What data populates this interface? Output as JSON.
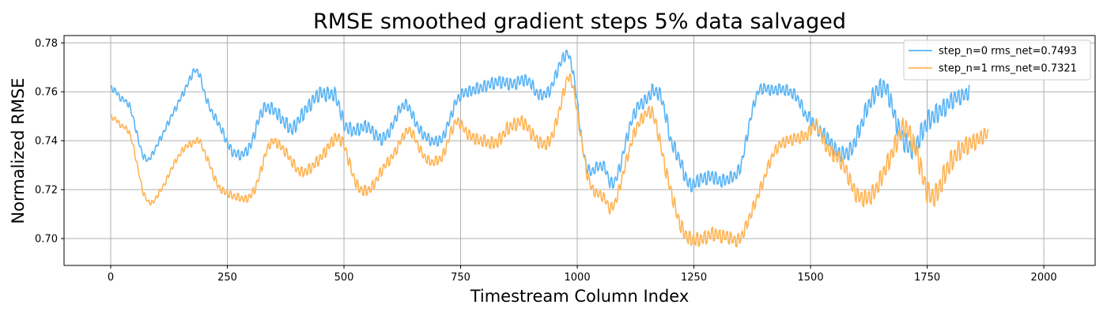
{
  "chart_data": {
    "type": "line",
    "title": "RMSE smoothed gradient steps 5% data salvaged",
    "xlabel": "Timestream Column Index",
    "ylabel": "Normalized RMSE",
    "xlim": [
      -100,
      2110
    ],
    "ylim": [
      0.689,
      0.783
    ],
    "xticks": [
      0,
      250,
      500,
      750,
      1000,
      1250,
      1500,
      1750,
      2000
    ],
    "yticks": [
      0.7,
      0.72,
      0.74,
      0.76,
      0.78
    ],
    "xtick_labels": [
      "0",
      "250",
      "500",
      "750",
      "1000",
      "1250",
      "1500",
      "1750",
      "2000"
    ],
    "ytick_labels": [
      "0.70",
      "0.72",
      "0.74",
      "0.76",
      "0.78"
    ],
    "grid": true,
    "legend_position": "top-right",
    "series": [
      {
        "name": "step_n=0 rms_net=0.7493",
        "color": "#5ab4f5",
        "x_start": 0,
        "x_step": 10,
        "noise": [
          0.0012,
          0.0012,
          0.0015,
          0.002,
          0.0028,
          0.003,
          0.0026,
          0.0022,
          0.0022,
          0.0026,
          0.0024,
          0.002,
          0.0025,
          0.003,
          0.0028,
          0.0022,
          0.0024,
          0.0032,
          0.004,
          0.0045,
          0.003
        ],
        "values": [
          0.7615,
          0.7605,
          0.7575,
          0.7565,
          0.7545,
          0.748,
          0.7395,
          0.7335,
          0.732,
          0.7345,
          0.7385,
          0.742,
          0.746,
          0.75,
          0.7535,
          0.7575,
          0.761,
          0.7655,
          0.769,
          0.7675,
          0.76,
          0.7545,
          0.7505,
          0.7475,
          0.7435,
          0.739,
          0.7355,
          0.7345,
          0.734,
          0.7355,
          0.738,
          0.744,
          0.7505,
          0.7535,
          0.7535,
          0.7525,
          0.7505,
          0.748,
          0.746,
          0.7445,
          0.7475,
          0.7505,
          0.753,
          0.7555,
          0.758,
          0.7595,
          0.759,
          0.759,
          0.759,
          0.754,
          0.7465,
          0.745,
          0.744,
          0.7445,
          0.7455,
          0.746,
          0.744,
          0.742,
          0.7405,
          0.742,
          0.7445,
          0.749,
          0.753,
          0.755,
          0.7535,
          0.749,
          0.745,
          0.7425,
          0.741,
          0.7395,
          0.74,
          0.7405,
          0.745,
          0.7505,
          0.756,
          0.7585,
          0.76,
          0.76,
          0.761,
          0.7615,
          0.762,
          0.763,
          0.7635,
          0.764,
          0.764,
          0.7635,
          0.763,
          0.7635,
          0.765,
          0.7645,
          0.764,
          0.76,
          0.7585,
          0.759,
          0.76,
          0.7645,
          0.77,
          0.774,
          0.776,
          0.7695,
          0.756,
          0.739,
          0.729,
          0.727,
          0.729,
          0.73,
          0.729,
          0.7225,
          0.723,
          0.728,
          0.736,
          0.744,
          0.75,
          0.754,
          0.7555,
          0.757,
          0.7605,
          0.76,
          0.758,
          0.75,
          0.74,
          0.736,
          0.732,
          0.726,
          0.722,
          0.722,
          0.724,
          0.7245,
          0.725,
          0.7255,
          0.724,
          0.7235,
          0.724,
          0.725,
          0.726,
          0.729,
          0.738,
          0.748,
          0.756,
          0.761,
          0.7615,
          0.761,
          0.7605,
          0.761,
          0.761,
          0.7605,
          0.7595,
          0.758,
          0.7545,
          0.75,
          0.749,
          0.746,
          0.744,
          0.7425,
          0.74,
          0.737,
          0.735,
          0.7345,
          0.735,
          0.737,
          0.742,
          0.747,
          0.753,
          0.7565,
          0.76,
          0.7615,
          0.762,
          0.7575,
          0.75,
          0.744,
          0.74,
          0.7375,
          0.7365,
          0.7395,
          0.744,
          0.7475,
          0.7495,
          0.751,
          0.7525,
          0.754,
          0.756,
          0.7575,
          0.758,
          0.7585,
          0.76
        ]
      },
      {
        "name": "step_n=1 rms_net=0.7321",
        "color": "#ffb454",
        "x_start": 0,
        "x_step": 10,
        "noise": [
          0.001,
          0.001,
          0.0014,
          0.0016,
          0.002,
          0.0024,
          0.0022,
          0.0018,
          0.0022,
          0.0028,
          0.0026,
          0.002,
          0.0024,
          0.003,
          0.0028,
          0.0022,
          0.0026,
          0.0034,
          0.0042,
          0.0048,
          0.003
        ],
        "values": [
          0.7495,
          0.749,
          0.7465,
          0.7455,
          0.7435,
          0.7365,
          0.727,
          0.7185,
          0.715,
          0.7145,
          0.7175,
          0.7205,
          0.724,
          0.7285,
          0.732,
          0.735,
          0.7375,
          0.7385,
          0.7395,
          0.7405,
          0.7355,
          0.7315,
          0.726,
          0.7215,
          0.7195,
          0.7185,
          0.7175,
          0.717,
          0.7165,
          0.716,
          0.7175,
          0.7205,
          0.7265,
          0.7335,
          0.7385,
          0.74,
          0.7385,
          0.7365,
          0.734,
          0.731,
          0.728,
          0.727,
          0.7275,
          0.729,
          0.731,
          0.733,
          0.7355,
          0.7385,
          0.741,
          0.741,
          0.7385,
          0.732,
          0.7255,
          0.721,
          0.7195,
          0.7195,
          0.721,
          0.724,
          0.7275,
          0.7305,
          0.7325,
          0.7355,
          0.7395,
          0.743,
          0.7445,
          0.742,
          0.7375,
          0.734,
          0.732,
          0.731,
          0.732,
          0.733,
          0.738,
          0.744,
          0.748,
          0.747,
          0.744,
          0.742,
          0.741,
          0.74,
          0.74,
          0.739,
          0.739,
          0.7395,
          0.742,
          0.745,
          0.746,
          0.747,
          0.748,
          0.7465,
          0.7435,
          0.741,
          0.739,
          0.7385,
          0.7395,
          0.744,
          0.751,
          0.759,
          0.7665,
          0.7635,
          0.752,
          0.739,
          0.727,
          0.721,
          0.7185,
          0.718,
          0.716,
          0.712,
          0.714,
          0.72,
          0.728,
          0.735,
          0.742,
          0.7465,
          0.7495,
          0.7515,
          0.752,
          0.746,
          0.737,
          0.7275,
          0.72,
          0.7125,
          0.706,
          0.702,
          0.7,
          0.6995,
          0.6995,
          0.7,
          0.701,
          0.702,
          0.7015,
          0.701,
          0.701,
          0.7,
          0.699,
          0.7,
          0.704,
          0.709,
          0.714,
          0.719,
          0.724,
          0.73,
          0.7345,
          0.7375,
          0.739,
          0.74,
          0.7405,
          0.741,
          0.7415,
          0.742,
          0.744,
          0.747,
          0.744,
          0.739,
          0.736,
          0.734,
          0.733,
          0.73,
          0.726,
          0.721,
          0.7175,
          0.7165,
          0.7165,
          0.7175,
          0.72,
          0.724,
          0.7285,
          0.7325,
          0.7375,
          0.742,
          0.746,
          0.744,
          0.739,
          0.734,
          0.7255,
          0.719,
          0.717,
          0.718,
          0.7225,
          0.7275,
          0.731,
          0.734,
          0.736,
          0.7375,
          0.7385,
          0.7395,
          0.7405,
          0.742,
          0.743
        ]
      }
    ]
  }
}
